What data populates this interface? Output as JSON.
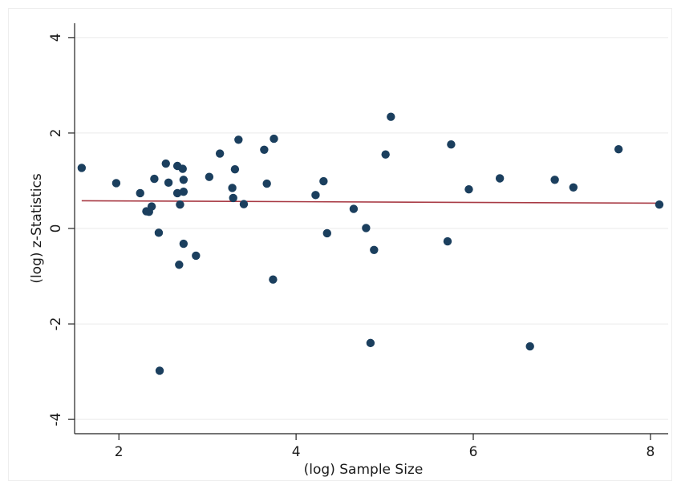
{
  "chart_data": {
    "type": "scatter",
    "xlabel": "(log) Sample Size",
    "ylabel": "(log) z-Statistics",
    "xlim": [
      1.5,
      8.2
    ],
    "ylim": [
      -4.3,
      4.3
    ],
    "xticks": [
      "2",
      "4",
      "6",
      "8"
    ],
    "yticks": [
      "-4",
      "-2",
      "0",
      "2",
      "4"
    ],
    "grid": true,
    "colors": {
      "points": "#1b3f5e",
      "fit_line": "#a83a44",
      "grid": "#eaeaea",
      "axis": "#222222"
    },
    "series": [
      {
        "type": "scatter",
        "points": [
          {
            "x": 1.58,
            "y": 1.27
          },
          {
            "x": 1.97,
            "y": 0.95
          },
          {
            "x": 2.24,
            "y": 0.74
          },
          {
            "x": 2.31,
            "y": 0.36
          },
          {
            "x": 2.34,
            "y": 0.35
          },
          {
            "x": 2.37,
            "y": 0.46
          },
          {
            "x": 2.4,
            "y": 1.04
          },
          {
            "x": 2.45,
            "y": -0.09
          },
          {
            "x": 2.46,
            "y": -2.98
          },
          {
            "x": 2.53,
            "y": 1.36
          },
          {
            "x": 2.56,
            "y": 0.96
          },
          {
            "x": 2.66,
            "y": 1.31
          },
          {
            "x": 2.66,
            "y": 0.74
          },
          {
            "x": 2.68,
            "y": -0.76
          },
          {
            "x": 2.69,
            "y": 0.5
          },
          {
            "x": 2.72,
            "y": 1.25
          },
          {
            "x": 2.73,
            "y": 1.02
          },
          {
            "x": 2.73,
            "y": 0.77
          },
          {
            "x": 2.73,
            "y": -0.32
          },
          {
            "x": 2.87,
            "y": -0.57
          },
          {
            "x": 3.02,
            "y": 1.08
          },
          {
            "x": 3.14,
            "y": 1.57
          },
          {
            "x": 3.28,
            "y": 0.85
          },
          {
            "x": 3.29,
            "y": 0.64
          },
          {
            "x": 3.31,
            "y": 1.24
          },
          {
            "x": 3.35,
            "y": 1.86
          },
          {
            "x": 3.41,
            "y": 0.51
          },
          {
            "x": 3.64,
            "y": 1.65
          },
          {
            "x": 3.67,
            "y": 0.94
          },
          {
            "x": 3.74,
            "y": -1.07
          },
          {
            "x": 3.75,
            "y": 1.88
          },
          {
            "x": 4.22,
            "y": 0.7
          },
          {
            "x": 4.31,
            "y": 0.99
          },
          {
            "x": 4.35,
            "y": -0.1
          },
          {
            "x": 4.65,
            "y": 0.41
          },
          {
            "x": 4.79,
            "y": 0.01
          },
          {
            "x": 4.84,
            "y": -2.4
          },
          {
            "x": 4.88,
            "y": -0.45
          },
          {
            "x": 5.01,
            "y": 1.55
          },
          {
            "x": 5.07,
            "y": 2.34
          },
          {
            "x": 5.71,
            "y": -0.27
          },
          {
            "x": 5.75,
            "y": 1.76
          },
          {
            "x": 5.95,
            "y": 0.82
          },
          {
            "x": 6.3,
            "y": 1.05
          },
          {
            "x": 6.64,
            "y": -2.47
          },
          {
            "x": 6.92,
            "y": 1.02
          },
          {
            "x": 7.13,
            "y": 0.86
          },
          {
            "x": 7.64,
            "y": 1.66
          },
          {
            "x": 8.1,
            "y": 0.5
          }
        ]
      },
      {
        "type": "line",
        "points": [
          {
            "x": 1.58,
            "y": 0.58
          },
          {
            "x": 8.1,
            "y": 0.53
          }
        ]
      }
    ]
  }
}
